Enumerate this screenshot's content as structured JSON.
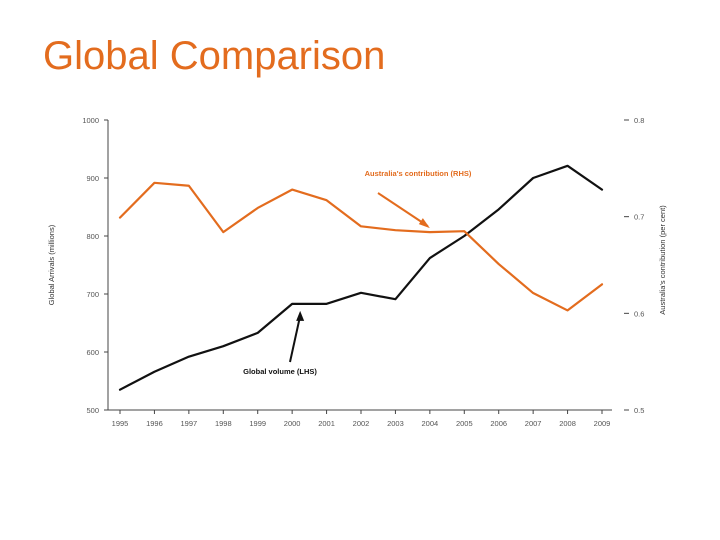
{
  "page": {
    "title": "Global Comparison"
  },
  "chart_data": {
    "type": "line",
    "title": "",
    "categories": [
      "1995",
      "1996",
      "1997",
      "1998",
      "1999",
      "2000",
      "2001",
      "2002",
      "2003",
      "2004",
      "2005",
      "2006",
      "2007",
      "2008",
      "2009"
    ],
    "category_labels": [
      "1995",
      "1996",
      "1997",
      "1998",
      "1999",
      "2000",
      "2001",
      "2002",
      "2003",
      "2004",
      "2005",
      "2006",
      "2007",
      "2008",
      "2009"
    ],
    "series": [
      {
        "name": "Global volume (LHS)",
        "axis": "left",
        "color": "#111111",
        "values": [
          535,
          566,
          592,
          610,
          633,
          683,
          683,
          702,
          691,
          762,
          800,
          846,
          900,
          921,
          880
        ]
      },
      {
        "name": "Australia's contribution (RHS)",
        "axis": "right",
        "color": "#e36c1e",
        "values": [
          0.699,
          0.735,
          0.732,
          0.684,
          0.709,
          0.728,
          0.717,
          0.69,
          0.686,
          0.684,
          0.685,
          0.651,
          0.621,
          0.603,
          0.63
        ]
      }
    ],
    "ylabel": "Global Arrivals (millions)",
    "ylim": [
      500,
      1000
    ],
    "yticks": [
      "1000",
      "900",
      "800",
      "700",
      "600",
      "500"
    ],
    "y2label": "Australia's contribution (per cent)",
    "y2lim": [
      0.5,
      0.8
    ],
    "y2ticks": [
      "0.8",
      "0.7",
      "0.6",
      "0.5"
    ],
    "grid": false,
    "annotations": [
      {
        "text": "Australia's contribution (RHS)",
        "color": "#e36c1e",
        "points_to": {
          "series": 1,
          "category": "2004"
        }
      },
      {
        "text": "Global volume (LHS)",
        "color": "#111111",
        "points_to": {
          "series": 0,
          "category": "2000"
        }
      }
    ]
  }
}
